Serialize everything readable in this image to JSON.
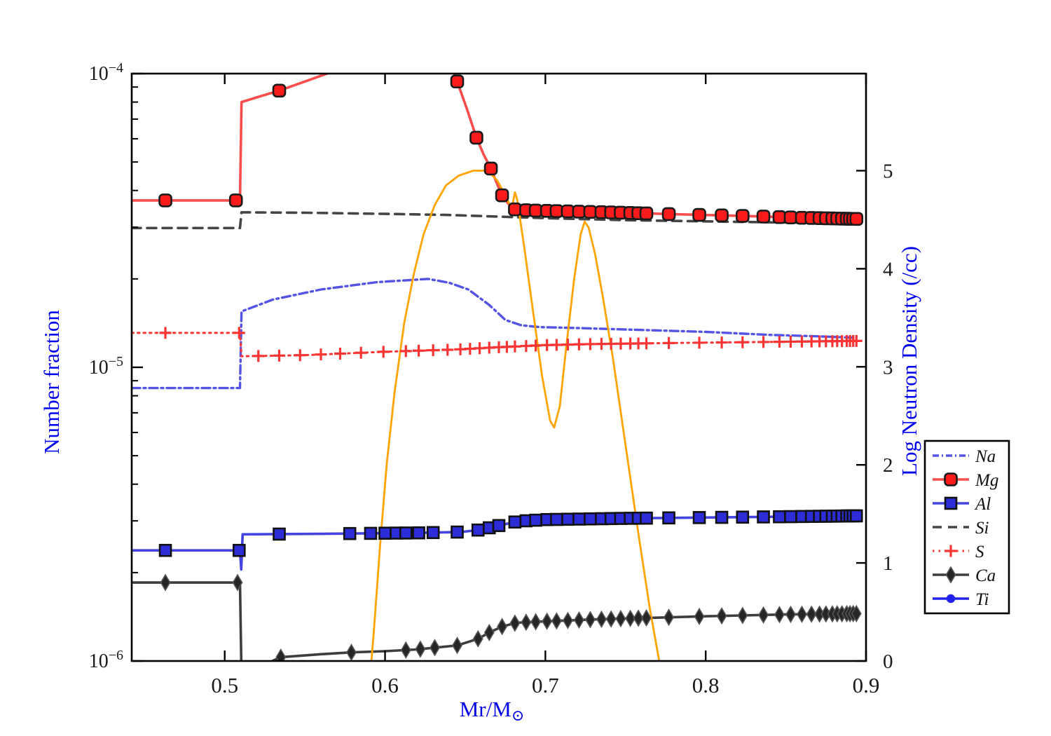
{
  "chart_data": {
    "type": "line",
    "title": "",
    "x_axis": {
      "label_main": "Mr/M",
      "label_sub": "⊙",
      "range": [
        0.442,
        0.9
      ],
      "ticks": [
        0.5,
        0.6,
        0.7,
        0.8,
        0.9
      ],
      "tick_labels": [
        "0.5",
        "0.6",
        "0.7",
        "0.8",
        "0.9"
      ]
    },
    "y_left_axis": {
      "label": "Number fraction",
      "scale": "log",
      "range": [
        1e-06,
        0.0001
      ],
      "ticks": [
        1e-06,
        1e-05,
        0.0001
      ],
      "tick_exponents": [
        -6,
        -5,
        -4
      ],
      "label_color": "#0000ee"
    },
    "y_right_axis": {
      "label": "Log Neutron Density (/cc)",
      "scale": "linear",
      "range": [
        0,
        5.99
      ],
      "ticks": [
        0,
        1,
        2,
        3,
        4,
        5
      ],
      "tick_labels": [
        "0",
        "1",
        "2",
        "3",
        "4",
        "5"
      ],
      "label_color": "#0000ee"
    },
    "legend": {
      "position": "right",
      "entries": [
        "Na",
        "Mg",
        "Al",
        "Si",
        "S",
        "Ca",
        "Ti"
      ]
    },
    "series": [
      {
        "name": "Na",
        "axis": "left",
        "color": "#5353e4",
        "dash": "12 5 3 5",
        "width": 3.4,
        "marker": "none",
        "line": [
          [
            0.442,
            8.5e-06
          ],
          [
            0.5095,
            8.5e-06
          ],
          [
            0.5105,
            1.55e-05
          ],
          [
            0.53,
            1.7e-05
          ],
          [
            0.56,
            1.84e-05
          ],
          [
            0.595,
            1.95e-05
          ],
          [
            0.627,
            2e-05
          ],
          [
            0.64,
            1.94e-05
          ],
          [
            0.652,
            1.84e-05
          ],
          [
            0.665,
            1.63e-05
          ],
          [
            0.675,
            1.45e-05
          ],
          [
            0.685,
            1.39e-05
          ],
          [
            0.697,
            1.37e-05
          ],
          [
            0.72,
            1.36e-05
          ],
          [
            0.76,
            1.34e-05
          ],
          [
            0.8,
            1.32e-05
          ],
          [
            0.84,
            1.29e-05
          ],
          [
            0.87,
            1.275e-05
          ],
          [
            0.894,
            1.26e-05
          ]
        ],
        "markers_x": []
      },
      {
        "name": "Mg",
        "axis": "left",
        "color": "#f94c4c",
        "dash": "",
        "width": 3.6,
        "marker": "roundsquare",
        "marker_fill": "#fb1b1b",
        "marker_edge": "#1a1a1a",
        "line": [
          [
            0.442,
            3.7e-05
          ],
          [
            0.5095,
            3.7e-05
          ],
          [
            0.5105,
            8e-05
          ],
          [
            0.52,
            8.3e-05
          ],
          [
            0.534,
            8.75e-05
          ],
          [
            0.55,
            9.4e-05
          ],
          [
            0.566,
            0.000101
          ],
          [
            0.6,
            0.000118
          ],
          [
            0.63,
            0.000109
          ],
          [
            0.643,
            0.0001
          ],
          [
            0.645,
            9.4e-05
          ],
          [
            0.651,
            7.6e-05
          ],
          [
            0.657,
            6.05e-05
          ],
          [
            0.6615,
            5.3e-05
          ],
          [
            0.666,
            4.75e-05
          ],
          [
            0.67,
            4.2e-05
          ],
          [
            0.673,
            3.85e-05
          ],
          [
            0.677,
            3.6e-05
          ],
          [
            0.681,
            3.45e-05
          ],
          [
            0.69,
            3.42e-05
          ],
          [
            0.71,
            3.4e-05
          ],
          [
            0.74,
            3.37e-05
          ],
          [
            0.78,
            3.32e-05
          ],
          [
            0.82,
            3.28e-05
          ],
          [
            0.86,
            3.23e-05
          ],
          [
            0.894,
            3.2e-05
          ]
        ],
        "markers_x": [
          0.463,
          0.507,
          0.534,
          0.645,
          0.657,
          0.666,
          0.673,
          0.681,
          0.688,
          0.694,
          0.701,
          0.707,
          0.714,
          0.721,
          0.728,
          0.735,
          0.741,
          0.747,
          0.753,
          0.758,
          0.763,
          0.777,
          0.796,
          0.81,
          0.823,
          0.836,
          0.846,
          0.853,
          0.86,
          0.866,
          0.871,
          0.875,
          0.879,
          0.882,
          0.885,
          0.888,
          0.89,
          0.892,
          0.894
        ]
      },
      {
        "name": "Al",
        "axis": "left",
        "color": "#4444e0",
        "dash": "",
        "width": 3.6,
        "marker": "square",
        "marker_fill": "#2d2dd8",
        "marker_edge": "#111111",
        "line": [
          [
            0.442,
            2.38e-06
          ],
          [
            0.5095,
            2.38e-06
          ],
          [
            0.5103,
            2.05e-06
          ],
          [
            0.5112,
            2.7e-06
          ],
          [
            0.56,
            2.71e-06
          ],
          [
            0.62,
            2.73e-06
          ],
          [
            0.648,
            2.75e-06
          ],
          [
            0.66,
            2.8e-06
          ],
          [
            0.672,
            2.9e-06
          ],
          [
            0.683,
            2.99e-06
          ],
          [
            0.7,
            3.03e-06
          ],
          [
            0.75,
            3.06e-06
          ],
          [
            0.8,
            3.08e-06
          ],
          [
            0.85,
            3.1e-06
          ],
          [
            0.894,
            3.12e-06
          ]
        ],
        "markers_x": [
          0.463,
          0.509,
          0.534,
          0.578,
          0.591,
          0.6,
          0.607,
          0.613,
          0.621,
          0.63,
          0.645,
          0.658,
          0.665,
          0.671,
          0.681,
          0.688,
          0.694,
          0.701,
          0.707,
          0.714,
          0.721,
          0.728,
          0.735,
          0.741,
          0.747,
          0.753,
          0.758,
          0.763,
          0.777,
          0.796,
          0.81,
          0.823,
          0.836,
          0.846,
          0.853,
          0.86,
          0.866,
          0.871,
          0.875,
          0.879,
          0.882,
          0.885,
          0.888,
          0.89,
          0.892,
          0.894
        ]
      },
      {
        "name": "Si",
        "axis": "left",
        "color": "#454545",
        "dash": "13 9",
        "width": 3.6,
        "marker": "none",
        "line": [
          [
            0.442,
            2.98e-05
          ],
          [
            0.5095,
            2.98e-05
          ],
          [
            0.5105,
            3.37e-05
          ],
          [
            0.55,
            3.36e-05
          ],
          [
            0.6,
            3.33e-05
          ],
          [
            0.64,
            3.3e-05
          ],
          [
            0.67,
            3.26e-05
          ],
          [
            0.7,
            3.22e-05
          ],
          [
            0.75,
            3.17e-05
          ],
          [
            0.8,
            3.14e-05
          ],
          [
            0.85,
            3.11e-05
          ],
          [
            0.894,
            3.09e-05
          ]
        ],
        "markers_x": []
      },
      {
        "name": "S",
        "axis": "left",
        "color": "#fb3434",
        "dash": "2.5 6",
        "width": 3.0,
        "marker": "plus",
        "marker_fill": "#fb3434",
        "marker_edge": "#fb3434",
        "line": [
          [
            0.442,
            1.31e-05
          ],
          [
            0.5095,
            1.31e-05
          ],
          [
            0.5105,
            1.09e-05
          ],
          [
            0.55,
            1.1e-05
          ],
          [
            0.6,
            1.13e-05
          ],
          [
            0.645,
            1.15e-05
          ],
          [
            0.67,
            1.17e-05
          ],
          [
            0.7,
            1.19e-05
          ],
          [
            0.73,
            1.2e-05
          ],
          [
            0.78,
            1.21e-05
          ],
          [
            0.84,
            1.22e-05
          ],
          [
            0.894,
            1.23e-05
          ]
        ],
        "markers_x": [
          0.463,
          0.509,
          0.521,
          0.534,
          0.547,
          0.56,
          0.572,
          0.585,
          0.599,
          0.613,
          0.621,
          0.63,
          0.639,
          0.647,
          0.653,
          0.659,
          0.665,
          0.671,
          0.676,
          0.681,
          0.688,
          0.694,
          0.701,
          0.707,
          0.714,
          0.721,
          0.728,
          0.735,
          0.741,
          0.747,
          0.753,
          0.758,
          0.763,
          0.777,
          0.796,
          0.81,
          0.823,
          0.836,
          0.846,
          0.853,
          0.86,
          0.866,
          0.871,
          0.875,
          0.879,
          0.882,
          0.885,
          0.888,
          0.89,
          0.892,
          0.894
        ]
      },
      {
        "name": "Ca",
        "axis": "left",
        "color": "#3d3d3d",
        "dash": "",
        "width": 3.6,
        "marker": "diamond",
        "marker_fill": "#262626",
        "marker_edge": "#555555",
        "line": [
          [
            0.442,
            1.85e-06
          ],
          [
            0.5095,
            1.85e-06
          ],
          [
            0.5105,
            8.8e-07
          ],
          [
            0.517,
            9.2e-07
          ],
          [
            0.526,
            9.8e-07
          ],
          [
            0.535,
            1.03e-06
          ],
          [
            0.56,
            1.055e-06
          ],
          [
            0.579,
            1.07e-06
          ],
          [
            0.6,
            1.08e-06
          ],
          [
            0.62,
            1.095e-06
          ],
          [
            0.645,
            1.13e-06
          ],
          [
            0.658,
            1.19e-06
          ],
          [
            0.665,
            1.25e-06
          ],
          [
            0.673,
            1.31e-06
          ],
          [
            0.682,
            1.35e-06
          ],
          [
            0.7,
            1.365e-06
          ],
          [
            0.73,
            1.385e-06
          ],
          [
            0.76,
            1.4e-06
          ],
          [
            0.8,
            1.42e-06
          ],
          [
            0.85,
            1.44e-06
          ],
          [
            0.894,
            1.45e-06
          ]
        ],
        "markers_x": [
          0.463,
          0.508,
          0.535,
          0.579,
          0.613,
          0.622,
          0.631,
          0.645,
          0.658,
          0.665,
          0.673,
          0.681,
          0.688,
          0.694,
          0.701,
          0.707,
          0.714,
          0.721,
          0.728,
          0.735,
          0.741,
          0.747,
          0.753,
          0.758,
          0.763,
          0.777,
          0.796,
          0.81,
          0.823,
          0.836,
          0.846,
          0.853,
          0.86,
          0.866,
          0.871,
          0.875,
          0.879,
          0.882,
          0.885,
          0.888,
          0.89,
          0.892,
          0.894
        ]
      },
      {
        "name": "Ti",
        "axis": "left",
        "color": "#2222ee",
        "dash": "",
        "width": 3.4,
        "marker": "circle",
        "marker_fill": "#2222ee",
        "marker_edge": "#2222ee",
        "line": [],
        "markers_x": []
      },
      {
        "name": "NeutronDensity",
        "axis": "right",
        "color": "#ffa400",
        "dash": "",
        "width": 2.8,
        "marker": "none",
        "in_legend": false,
        "line": [
          [
            0.591,
            -0.1
          ],
          [
            0.593,
            0.3
          ],
          [
            0.597,
            1.2
          ],
          [
            0.601,
            2.0
          ],
          [
            0.606,
            2.75
          ],
          [
            0.612,
            3.45
          ],
          [
            0.618,
            3.95
          ],
          [
            0.624,
            4.35
          ],
          [
            0.631,
            4.65
          ],
          [
            0.638,
            4.85
          ],
          [
            0.646,
            4.95
          ],
          [
            0.655,
            5.0
          ],
          [
            0.664,
            5.0
          ],
          [
            0.67,
            4.9
          ],
          [
            0.675,
            4.75
          ],
          [
            0.679,
            4.61
          ],
          [
            0.681,
            4.78
          ],
          [
            0.6825,
            4.7
          ],
          [
            0.687,
            4.2
          ],
          [
            0.692,
            3.6
          ],
          [
            0.698,
            2.9
          ],
          [
            0.703,
            2.45
          ],
          [
            0.7055,
            2.38
          ],
          [
            0.709,
            2.6
          ],
          [
            0.713,
            3.2
          ],
          [
            0.718,
            3.9
          ],
          [
            0.722,
            4.35
          ],
          [
            0.7245,
            4.48
          ],
          [
            0.727,
            4.42
          ],
          [
            0.731,
            4.15
          ],
          [
            0.736,
            3.7
          ],
          [
            0.742,
            3.1
          ],
          [
            0.75,
            2.2
          ],
          [
            0.758,
            1.3
          ],
          [
            0.765,
            0.55
          ],
          [
            0.771,
            0.0
          ],
          [
            0.774,
            -0.1
          ]
        ],
        "markers_x": []
      }
    ]
  }
}
